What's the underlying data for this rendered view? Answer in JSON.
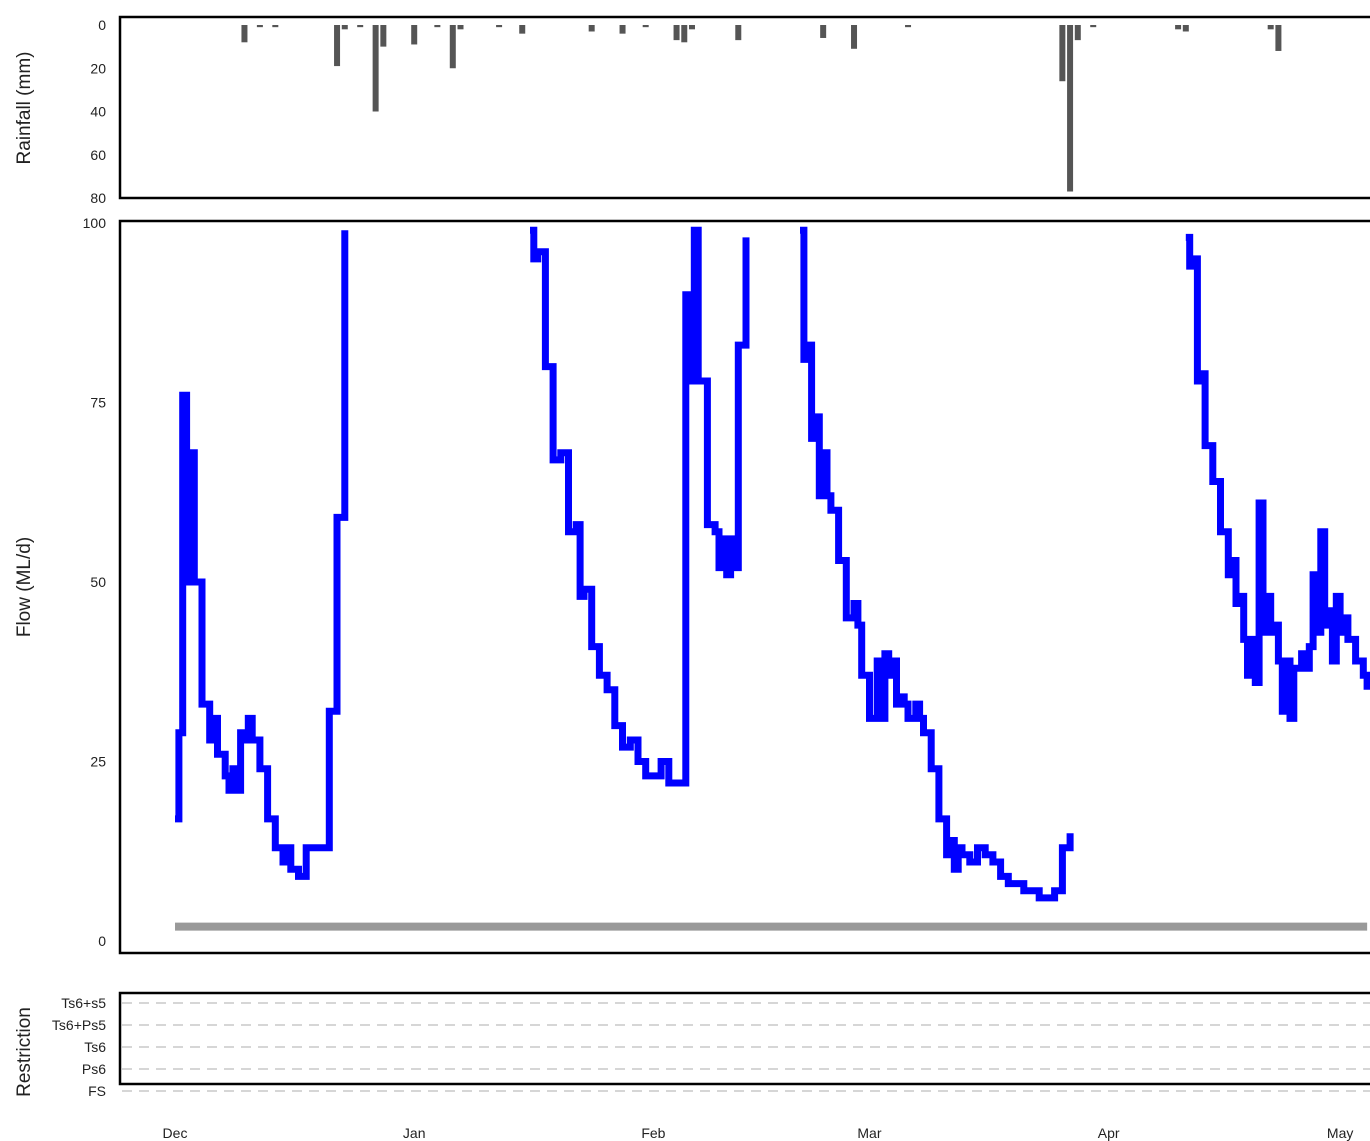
{
  "chart_data": [
    {
      "type": "bar",
      "ylabel": "Rainfall (mm)",
      "yticks": [
        "0",
        "20",
        "40",
        "60",
        "80"
      ],
      "ylim": [
        0,
        80
      ],
      "y_inverted": true,
      "bar_color": "#555555",
      "x": [
        9,
        11,
        13,
        21,
        22,
        24,
        26,
        27,
        31,
        34,
        36,
        37,
        42,
        45,
        54,
        58,
        61,
        65,
        66,
        67,
        73,
        84,
        88,
        95,
        115,
        116,
        117,
        119,
        130,
        131,
        142,
        143
      ],
      "values": [
        8,
        1,
        1,
        19,
        2,
        1,
        40,
        10,
        9,
        1,
        20,
        2,
        1,
        4,
        3,
        4,
        1,
        7,
        8,
        2,
        7,
        6,
        11,
        1,
        26,
        77,
        7,
        1,
        2,
        3,
        2,
        12
      ]
    },
    {
      "type": "line",
      "ylabel": "Flow (ML/d)",
      "yticks": [
        "0",
        "25",
        "50",
        "75",
        "100"
      ],
      "ylim": [
        0,
        100
      ],
      "series": [
        {
          "color": "#0000ff",
          "segments": [
            [
              [
                0,
                17
              ],
              [
                0.5,
                29
              ],
              [
                1,
                76
              ],
              [
                1.5,
                50
              ],
              [
                2,
                68
              ],
              [
                2.5,
                50
              ],
              [
                3,
                50
              ],
              [
                3.5,
                33
              ],
              [
                4.5,
                28
              ],
              [
                5,
                31
              ],
              [
                5.5,
                26
              ],
              [
                6.5,
                23
              ],
              [
                7,
                21
              ],
              [
                7.5,
                24
              ],
              [
                8,
                21
              ],
              [
                8.5,
                29
              ],
              [
                9,
                28
              ],
              [
                9.5,
                31
              ],
              [
                10,
                28
              ],
              [
                11,
                24
              ],
              [
                12,
                17
              ],
              [
                13,
                13
              ],
              [
                14,
                11
              ],
              [
                14.5,
                13
              ],
              [
                15,
                10
              ],
              [
                16,
                9
              ],
              [
                17,
                13
              ],
              [
                18,
                13
              ],
              [
                19,
                13
              ],
              [
                20,
                32
              ],
              [
                21,
                59
              ],
              [
                22,
                99
              ]
            ],
            [
              [
                46,
                99
              ],
              [
                46.5,
                95
              ],
              [
                47,
                96
              ],
              [
                48,
                80
              ],
              [
                49,
                67
              ],
              [
                50,
                68
              ],
              [
                51,
                57
              ],
              [
                52,
                58
              ],
              [
                52.5,
                48
              ],
              [
                53,
                49
              ],
              [
                54,
                41
              ],
              [
                55,
                37
              ],
              [
                56,
                35
              ],
              [
                57,
                30
              ],
              [
                58,
                27
              ],
              [
                59,
                28
              ],
              [
                60,
                25
              ],
              [
                61,
                23
              ],
              [
                62,
                23
              ],
              [
                63,
                25
              ],
              [
                64,
                22
              ],
              [
                65,
                22
              ],
              [
                66,
                22
              ],
              [
                66.2,
                90
              ],
              [
                66.7,
                88
              ],
              [
                67,
                78
              ],
              [
                67.3,
                99
              ],
              [
                67.8,
                78
              ],
              [
                68.5,
                78
              ],
              [
                69,
                58
              ],
              [
                70,
                57
              ],
              [
                70.5,
                52
              ],
              [
                71,
                56
              ],
              [
                71.5,
                51
              ],
              [
                72,
                56
              ],
              [
                72.5,
                52
              ],
              [
                73,
                83
              ],
              [
                74,
                98
              ]
            ],
            [
              [
                81,
                99
              ],
              [
                81.5,
                81
              ],
              [
                82,
                83
              ],
              [
                82.5,
                70
              ],
              [
                83,
                73
              ],
              [
                83.5,
                62
              ],
              [
                84,
                68
              ],
              [
                84.5,
                62
              ],
              [
                85,
                60
              ],
              [
                86,
                53
              ],
              [
                87,
                45
              ],
              [
                88,
                47
              ],
              [
                88.5,
                44
              ],
              [
                89,
                37
              ],
              [
                90,
                31
              ],
              [
                91,
                39
              ],
              [
                91.5,
                31
              ],
              [
                92,
                40
              ],
              [
                92.5,
                37
              ],
              [
                93,
                39
              ],
              [
                93.5,
                33
              ],
              [
                94,
                34
              ],
              [
                94.5,
                33
              ],
              [
                95,
                31
              ],
              [
                96,
                33
              ],
              [
                96.5,
                31
              ],
              [
                97,
                29
              ],
              [
                98,
                24
              ],
              [
                99,
                17
              ],
              [
                100,
                12
              ],
              [
                100.5,
                14
              ],
              [
                101,
                10
              ],
              [
                101.5,
                13
              ],
              [
                102,
                12
              ],
              [
                103,
                11
              ],
              [
                104,
                13
              ],
              [
                105,
                12
              ],
              [
                106,
                11
              ],
              [
                107,
                9
              ],
              [
                108,
                8
              ],
              [
                109,
                8
              ],
              [
                110,
                7
              ],
              [
                111,
                7
              ],
              [
                112,
                6
              ],
              [
                113,
                6
              ],
              [
                114,
                7
              ],
              [
                115,
                13
              ],
              [
                116,
                15
              ]
            ],
            [
              [
                131,
                98
              ],
              [
                131.5,
                94
              ],
              [
                132,
                95
              ],
              [
                132.5,
                78
              ],
              [
                133,
                79
              ],
              [
                133.5,
                69
              ],
              [
                134,
                69
              ],
              [
                134.5,
                64
              ],
              [
                135,
                64
              ],
              [
                135.5,
                57
              ],
              [
                136,
                57
              ],
              [
                136.5,
                51
              ],
              [
                137,
                53
              ],
              [
                137.5,
                47
              ],
              [
                138,
                48
              ],
              [
                138.5,
                42
              ],
              [
                139,
                37
              ],
              [
                139.5,
                42
              ],
              [
                140,
                36
              ],
              [
                140.5,
                61
              ],
              [
                141,
                43
              ],
              [
                141.5,
                48
              ],
              [
                142,
                43
              ],
              [
                142.5,
                44
              ],
              [
                143,
                39
              ],
              [
                143.5,
                32
              ],
              [
                144,
                39
              ],
              [
                144.5,
                31
              ],
              [
                145,
                38
              ],
              [
                146,
                40
              ],
              [
                146.5,
                38
              ],
              [
                147,
                41
              ],
              [
                147.5,
                51
              ],
              [
                148,
                43
              ],
              [
                148.5,
                57
              ],
              [
                149,
                44
              ],
              [
                149.5,
                46
              ],
              [
                150,
                39
              ],
              [
                150.5,
                48
              ],
              [
                151,
                43
              ],
              [
                151.5,
                45
              ],
              [
                152,
                42
              ],
              [
                153,
                39
              ],
              [
                154,
                37
              ],
              [
                154.5,
                35
              ]
            ]
          ]
        }
      ],
      "threshold": {
        "value": 2,
        "color": "#999999"
      }
    },
    {
      "type": "table",
      "ylabel": "Restriction",
      "levels": [
        "Ts6+s5",
        "Ts6+Ps5",
        "Ts6",
        "Ps6",
        "FS"
      ]
    }
  ],
  "x_axis": {
    "xlim": [
      -7,
      155
    ],
    "ticks": [
      {
        "label": "Dec",
        "day": 0
      },
      {
        "label": "Jan",
        "day": 31
      },
      {
        "label": "Feb",
        "day": 62
      },
      {
        "label": "Mar",
        "day": 90
      },
      {
        "label": "Apr",
        "day": 121
      },
      {
        "label": "May",
        "day": 151
      }
    ]
  }
}
